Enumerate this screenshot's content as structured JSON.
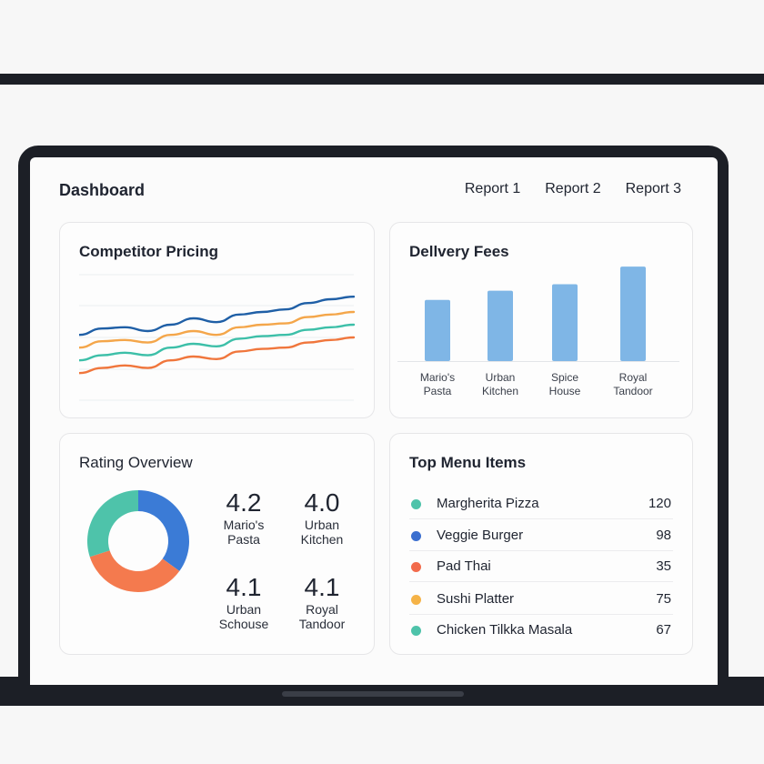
{
  "header": {
    "title": "Dashboard",
    "nav": [
      "Report 1",
      "Report 2",
      "Report 3"
    ]
  },
  "pricing": {
    "title": "Competitor Pricing",
    "chart_data": {
      "type": "line",
      "title": "Competitor Pricing",
      "x": [
        0,
        1,
        2,
        3,
        4,
        5,
        6,
        7,
        8,
        9,
        10,
        11,
        12
      ],
      "ylim": [
        0,
        100
      ],
      "grid": true,
      "series": [
        {
          "color": "#1f5fa6",
          "values": [
            52,
            57,
            58,
            55,
            60,
            65,
            62,
            68,
            70,
            72,
            77,
            80,
            82
          ]
        },
        {
          "color": "#f4a64a",
          "values": [
            42,
            47,
            48,
            46,
            52,
            55,
            52,
            58,
            60,
            61,
            66,
            68,
            70
          ]
        },
        {
          "color": "#3cbfa8",
          "values": [
            32,
            36,
            38,
            36,
            42,
            45,
            43,
            49,
            51,
            52,
            56,
            58,
            60
          ]
        },
        {
          "color": "#f0763c",
          "values": [
            22,
            26,
            28,
            26,
            32,
            35,
            33,
            39,
            41,
            42,
            46,
            48,
            50
          ]
        }
      ]
    }
  },
  "fees": {
    "title": "Dellvery Fees",
    "chart_data": {
      "type": "bar",
      "title": "Dellvery Fees",
      "categories": [
        "Mario's Pasta",
        "Urban Kitchen",
        "Spice House",
        "Royal Tandoor"
      ],
      "category_lines": [
        [
          "Mario's",
          "Pasta"
        ],
        [
          "Urban",
          "Kitchen"
        ],
        [
          "Spice",
          "House"
        ],
        [
          "Royal",
          "Tandoor"
        ]
      ],
      "values": [
        66,
        76,
        83,
        102
      ],
      "ylim": [
        0,
        110
      ],
      "color": "#7fb6e6"
    }
  },
  "rating": {
    "title": "Rating Overview",
    "chart_data": {
      "type": "pie",
      "segments": [
        {
          "value": 35,
          "color": "#3b7bd6"
        },
        {
          "value": 35,
          "color": "#f47a4e"
        },
        {
          "value": 30,
          "color": "#4ec3aa"
        }
      ]
    },
    "items": [
      {
        "value": "4.2",
        "name_lines": [
          "Mario's",
          "Pasta"
        ]
      },
      {
        "value": "4.0",
        "name_lines": [
          "Urban",
          "Kitchen"
        ]
      },
      {
        "value": "4.1",
        "name_lines": [
          "Urban",
          "Schouse"
        ]
      },
      {
        "value": "4.1",
        "name_lines": [
          "Royal",
          "Tandoor"
        ]
      }
    ]
  },
  "menu": {
    "title": "Top Menu Items",
    "items": [
      {
        "name": "Margherita Pizza",
        "count": "120",
        "color": "#4ec3aa"
      },
      {
        "name": "Veggie Burger",
        "count": "98",
        "color": "#3b6fcf"
      },
      {
        "name": "Pad Thai",
        "count": "35",
        "color": "#f26b4c"
      },
      {
        "name": "Sushi Platter",
        "count": "75",
        "color": "#f5b347"
      },
      {
        "name": "Chicken Tilkka Masala",
        "count": "67",
        "color": "#4ec3aa"
      }
    ]
  }
}
